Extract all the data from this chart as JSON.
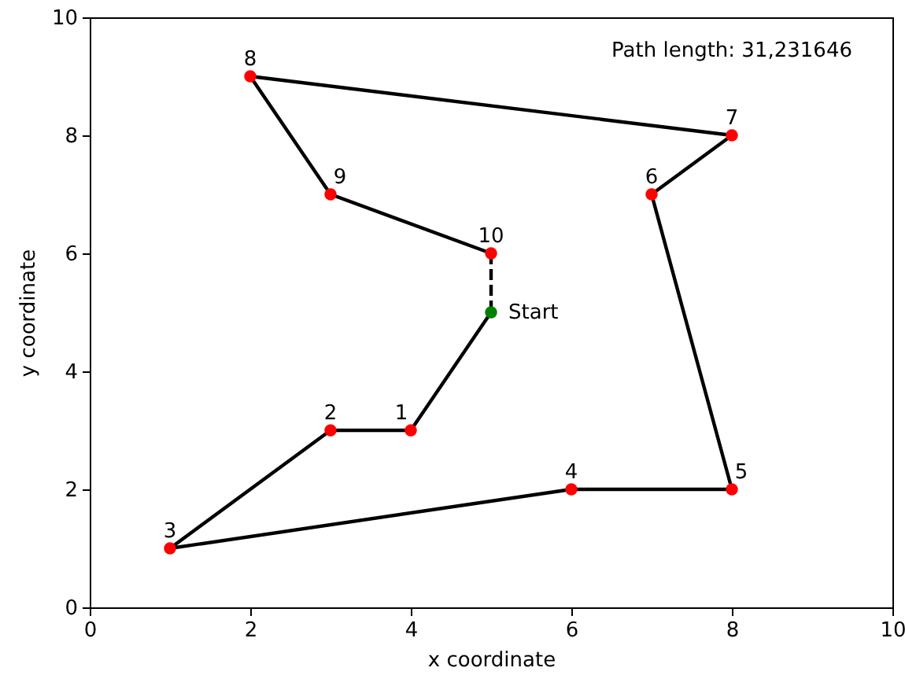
{
  "chart_data": {
    "type": "line",
    "xlabel": "x coordinate",
    "ylabel": "y coordinate",
    "xlim": [
      0,
      10
    ],
    "ylim": [
      0,
      10
    ],
    "xticks": [
      0,
      2,
      4,
      6,
      8,
      10
    ],
    "yticks": [
      0,
      2,
      4,
      6,
      8,
      10
    ],
    "grid": false,
    "annotations": [
      "Path length: 31,231646",
      {
        "text": "1",
        "x": 4,
        "y": 3
      },
      {
        "text": "2",
        "x": 3,
        "y": 3
      },
      {
        "text": "3",
        "x": 1,
        "y": 1
      },
      {
        "text": "4",
        "x": 6,
        "y": 2
      },
      {
        "text": "5",
        "x": 8,
        "y": 2
      },
      {
        "text": "6",
        "x": 7,
        "y": 7
      },
      {
        "text": "7",
        "x": 8,
        "y": 8
      },
      {
        "text": "8",
        "x": 2,
        "y": 9
      },
      {
        "text": "9",
        "x": 3,
        "y": 7
      },
      {
        "text": "10",
        "x": 5,
        "y": 6
      }
    ],
    "series": [
      {
        "color": "#000000",
        "line_style": "solid",
        "marker": "none",
        "x": [
          5,
          4,
          3,
          1,
          6,
          8,
          7,
          8,
          2,
          3,
          5
        ],
        "values": [
          5,
          3,
          3,
          1,
          2,
          2,
          7,
          8,
          9,
          7,
          6
        ]
      },
      {
        "color": "#000000",
        "line_style": "dashed",
        "marker": "none",
        "x": [
          5,
          5
        ],
        "values": [
          6,
          5
        ]
      },
      {
        "type": "scatter",
        "color": "#ff0000",
        "marker": "circle",
        "x": [
          4,
          3,
          1,
          6,
          8,
          7,
          8,
          2,
          3,
          5
        ],
        "values": [
          3,
          3,
          1,
          2,
          2,
          7,
          8,
          9,
          7,
          6
        ]
      },
      {
        "type": "scatter",
        "name": "Start",
        "color": "#008000",
        "marker": "circle",
        "x": [
          5
        ],
        "values": [
          5
        ]
      }
    ]
  }
}
